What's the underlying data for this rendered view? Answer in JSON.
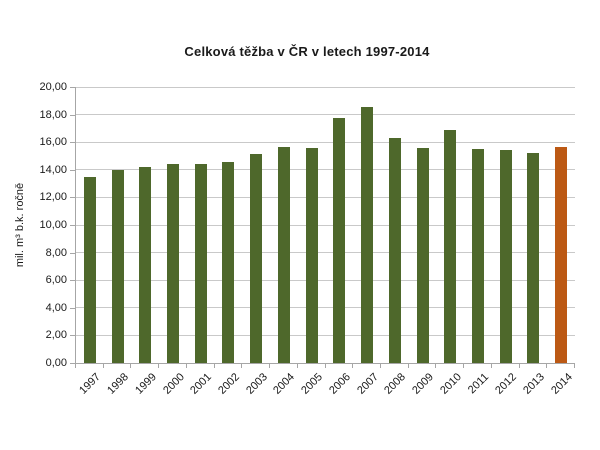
{
  "chart_data": {
    "type": "bar",
    "title": "Celková těžba v ČR v letech 1997-2014",
    "xlabel": "",
    "ylabel": "mil. m³  b.k. ročně",
    "categories": [
      "1997",
      "1998",
      "1999",
      "2000",
      "2001",
      "2002",
      "2003",
      "2004",
      "2005",
      "2006",
      "2007",
      "2008",
      "2009",
      "2010",
      "2011",
      "2012",
      "2013",
      "2014"
    ],
    "values": [
      13.5,
      14.0,
      14.2,
      14.45,
      14.4,
      14.6,
      15.15,
      15.65,
      15.55,
      17.75,
      18.55,
      16.3,
      15.6,
      16.85,
      15.5,
      15.45,
      15.2,
      15.65
    ],
    "ylim": [
      0,
      20
    ],
    "ytick_step": 2,
    "ytick_labels": [
      "0,00",
      "2,00",
      "4,00",
      "6,00",
      "8,00",
      "10,00",
      "12,00",
      "14,00",
      "16,00",
      "18,00",
      "20,00"
    ],
    "grid": "horizontal",
    "legend": "none",
    "bar_color": "#4e682b",
    "highlight_color": "#bc5914",
    "highlight_category": "2014"
  },
  "colors": {
    "background": "#ffffff",
    "gridline": "#c9c9c9",
    "axis": "#a6a6a6",
    "text": "#1a1a1a"
  }
}
